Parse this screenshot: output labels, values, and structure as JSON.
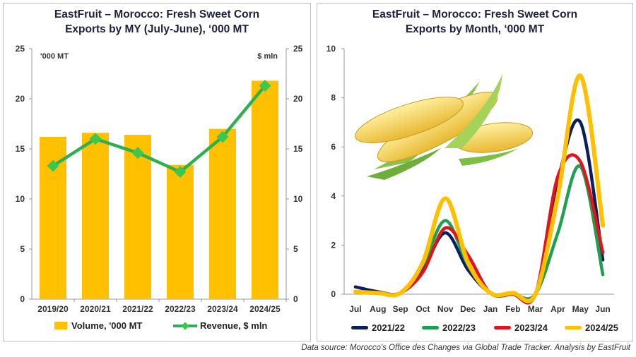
{
  "source_note": "Data source: Morocco's Office des Changes via Global Trade Tracker. Analysis by EastFruit",
  "colors": {
    "bar": "#FFC000",
    "revenue": "#2EB050",
    "revenue_marker": "#3CC84E",
    "s2122": "#0A1F5C",
    "s2223": "#1FA050",
    "s2324": "#E0141E",
    "s2425": "#FFC000"
  },
  "left": {
    "title_line1": "EastFruit – Morocco: Fresh Sweet Corn",
    "title_line2": "Exports by MY (July-June), ‘000 MT",
    "left_unit": "'000 MT",
    "right_unit": "$ mln",
    "legend_volume": "Volume, '000 MT",
    "legend_revenue": "Revenue, $ mln"
  },
  "right": {
    "title_line1": "EastFruit – Morocco: Fresh Sweet Corn",
    "title_line2": "Exports by Month, ‘000 MT",
    "image_label": "sweet-corn-photo"
  },
  "chart_data": [
    {
      "type": "bar",
      "title": "EastFruit – Morocco: Fresh Sweet Corn Exports by MY (July-June), ‘000 MT",
      "categories": [
        "2019/20",
        "2020/21",
        "2021/22",
        "2022/23",
        "2023/24",
        "2024/25"
      ],
      "series": [
        {
          "name": "Volume, '000 MT",
          "type": "bar",
          "axis": "left",
          "values": [
            16.2,
            16.6,
            16.4,
            13.4,
            17.0,
            21.8
          ]
        },
        {
          "name": "Revenue, $ mln",
          "type": "line",
          "axis": "right",
          "values": [
            13.3,
            16.0,
            14.6,
            12.7,
            16.2,
            21.3
          ]
        }
      ],
      "ylim": [
        0,
        25
      ],
      "y2lim": [
        0,
        25
      ],
      "yticks": [
        "0",
        "5",
        "10",
        "15",
        "20",
        "25"
      ],
      "ylabel": "'000 MT",
      "y2label": "$ mln",
      "legend": "bottom"
    },
    {
      "type": "line",
      "title": "EastFruit – Morocco: Fresh Sweet Corn Exports by Month, ‘000 MT",
      "categories": [
        "Jul",
        "Aug",
        "Sep",
        "Oct",
        "Nov",
        "Dec",
        "Jan",
        "Feb",
        "Mar",
        "Apr",
        "May",
        "Jun"
      ],
      "series": [
        {
          "name": "2021/22",
          "values": [
            0.3,
            0.1,
            0.05,
            1.0,
            2.5,
            1.0,
            0.05,
            0.0,
            0.0,
            4.6,
            7.0,
            1.4
          ]
        },
        {
          "name": "2022/23",
          "values": [
            0.1,
            0.05,
            0.05,
            1.2,
            3.0,
            1.2,
            0.05,
            0.0,
            0.0,
            2.5,
            5.2,
            0.8
          ]
        },
        {
          "name": "2023/24",
          "values": [
            0.1,
            0.05,
            0.05,
            0.9,
            2.7,
            1.6,
            0.05,
            0.0,
            0.0,
            4.8,
            5.4,
            1.7
          ]
        },
        {
          "name": "2024/25",
          "values": [
            0.1,
            0.05,
            0.05,
            1.3,
            3.9,
            1.3,
            0.05,
            0.05,
            0.0,
            4.0,
            8.9,
            2.8
          ]
        }
      ],
      "ylim": [
        0,
        10
      ],
      "yticks": [
        "0",
        "2",
        "4",
        "6",
        "8",
        "10"
      ],
      "legend": "bottom"
    }
  ]
}
